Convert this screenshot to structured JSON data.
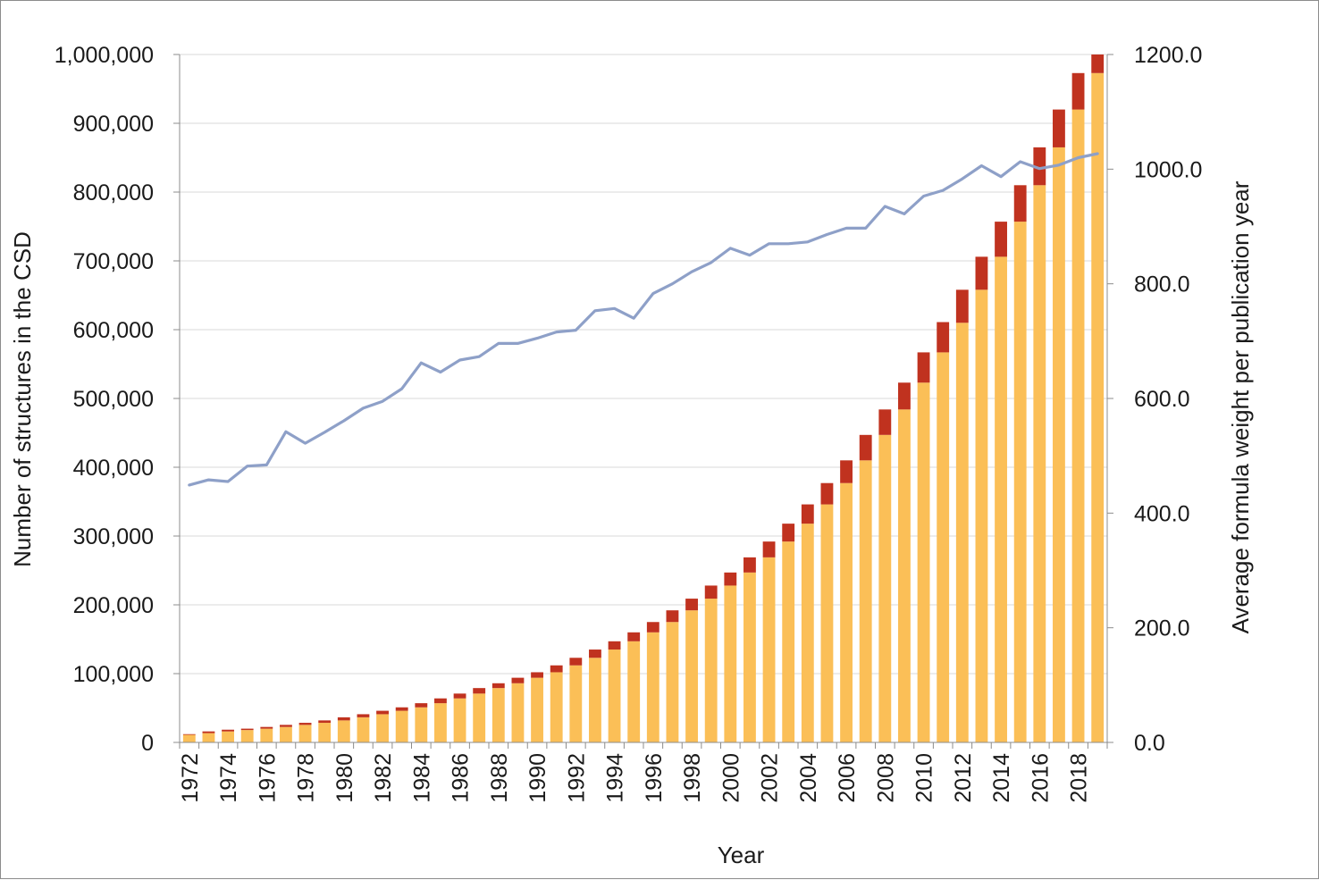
{
  "chart_data": {
    "type": "bar",
    "stacked": true,
    "x": [
      1972,
      1973,
      1974,
      1975,
      1976,
      1977,
      1978,
      1979,
      1980,
      1981,
      1982,
      1983,
      1984,
      1985,
      1986,
      1987,
      1988,
      1989,
      1990,
      1991,
      1992,
      1993,
      1994,
      1995,
      1996,
      1997,
      1998,
      1999,
      2000,
      2001,
      2002,
      2003,
      2004,
      2005,
      2006,
      2007,
      2008,
      2009,
      2010,
      2011,
      2012,
      2013,
      2014,
      2015,
      2016,
      2017,
      2018,
      2019
    ],
    "x_tick_labels": [
      "1972",
      "1974",
      "1976",
      "1978",
      "1980",
      "1982",
      "1984",
      "1986",
      "1988",
      "1990",
      "1992",
      "1994",
      "1996",
      "1998",
      "2000",
      "2002",
      "2004",
      "2006",
      "2008",
      "2010",
      "2012",
      "2014",
      "2016",
      "2018"
    ],
    "series": [
      {
        "axis": "left",
        "mark": "bar",
        "color": "#fbbf57",
        "values": [
          11000,
          13500,
          16000,
          18000,
          20000,
          22500,
          25500,
          28500,
          32000,
          36500,
          41000,
          46000,
          51000,
          57000,
          64000,
          71000,
          79000,
          86000,
          94000,
          102000,
          112000,
          123000,
          135000,
          147000,
          160000,
          175000,
          192000,
          209000,
          228000,
          247000,
          269000,
          292000,
          318000,
          346000,
          377000,
          410000,
          447000,
          484000,
          523000,
          567000,
          610000,
          658000,
          706000,
          757000,
          810000,
          865000,
          920000,
          973000
        ]
      },
      {
        "axis": "left",
        "mark": "bar",
        "color": "#c0321f",
        "values": [
          1000,
          2500,
          2500,
          2000,
          2500,
          3000,
          3000,
          3500,
          4500,
          4500,
          5000,
          5000,
          6000,
          7000,
          7000,
          8000,
          7000,
          8000,
          8000,
          10000,
          11000,
          12000,
          12000,
          13000,
          15000,
          17000,
          17000,
          19000,
          19000,
          22000,
          23000,
          26000,
          28000,
          31000,
          33000,
          37000,
          37000,
          39000,
          44000,
          44000,
          48000,
          48000,
          51000,
          53000,
          55000,
          55000,
          53000,
          27000
        ]
      },
      {
        "axis": "right",
        "mark": "line",
        "color": "#8ea0c8",
        "values": [
          449,
          458,
          455,
          482,
          484,
          542,
          522,
          541,
          561,
          583,
          595,
          617,
          662,
          646,
          667,
          673,
          696,
          696,
          705,
          716,
          719,
          753,
          757,
          740,
          783,
          800,
          821,
          837,
          862,
          850,
          870,
          870,
          873,
          886,
          897,
          897,
          935,
          922,
          953,
          963,
          983,
          1006,
          987,
          1013,
          1001,
          1007,
          1020,
          1027
        ]
      }
    ],
    "y_left": {
      "min": 0,
      "max": 1000000,
      "ticks": [
        "0",
        "100,000",
        "200,000",
        "300,000",
        "400,000",
        "500,000",
        "600,000",
        "700,000",
        "800,000",
        "900,000",
        "1,000,000"
      ]
    },
    "y_right": {
      "min": 0,
      "max": 1200,
      "ticks": [
        "0.0",
        "200.0",
        "400.0",
        "600.0",
        "800.0",
        "1000.0",
        "1200.0"
      ]
    },
    "xlabel": "Year",
    "ylabel": "Number of structures in the CSD",
    "ylabel_right": "Average formula weight per publication year",
    "grid": "horizontal",
    "legend": "none"
  }
}
